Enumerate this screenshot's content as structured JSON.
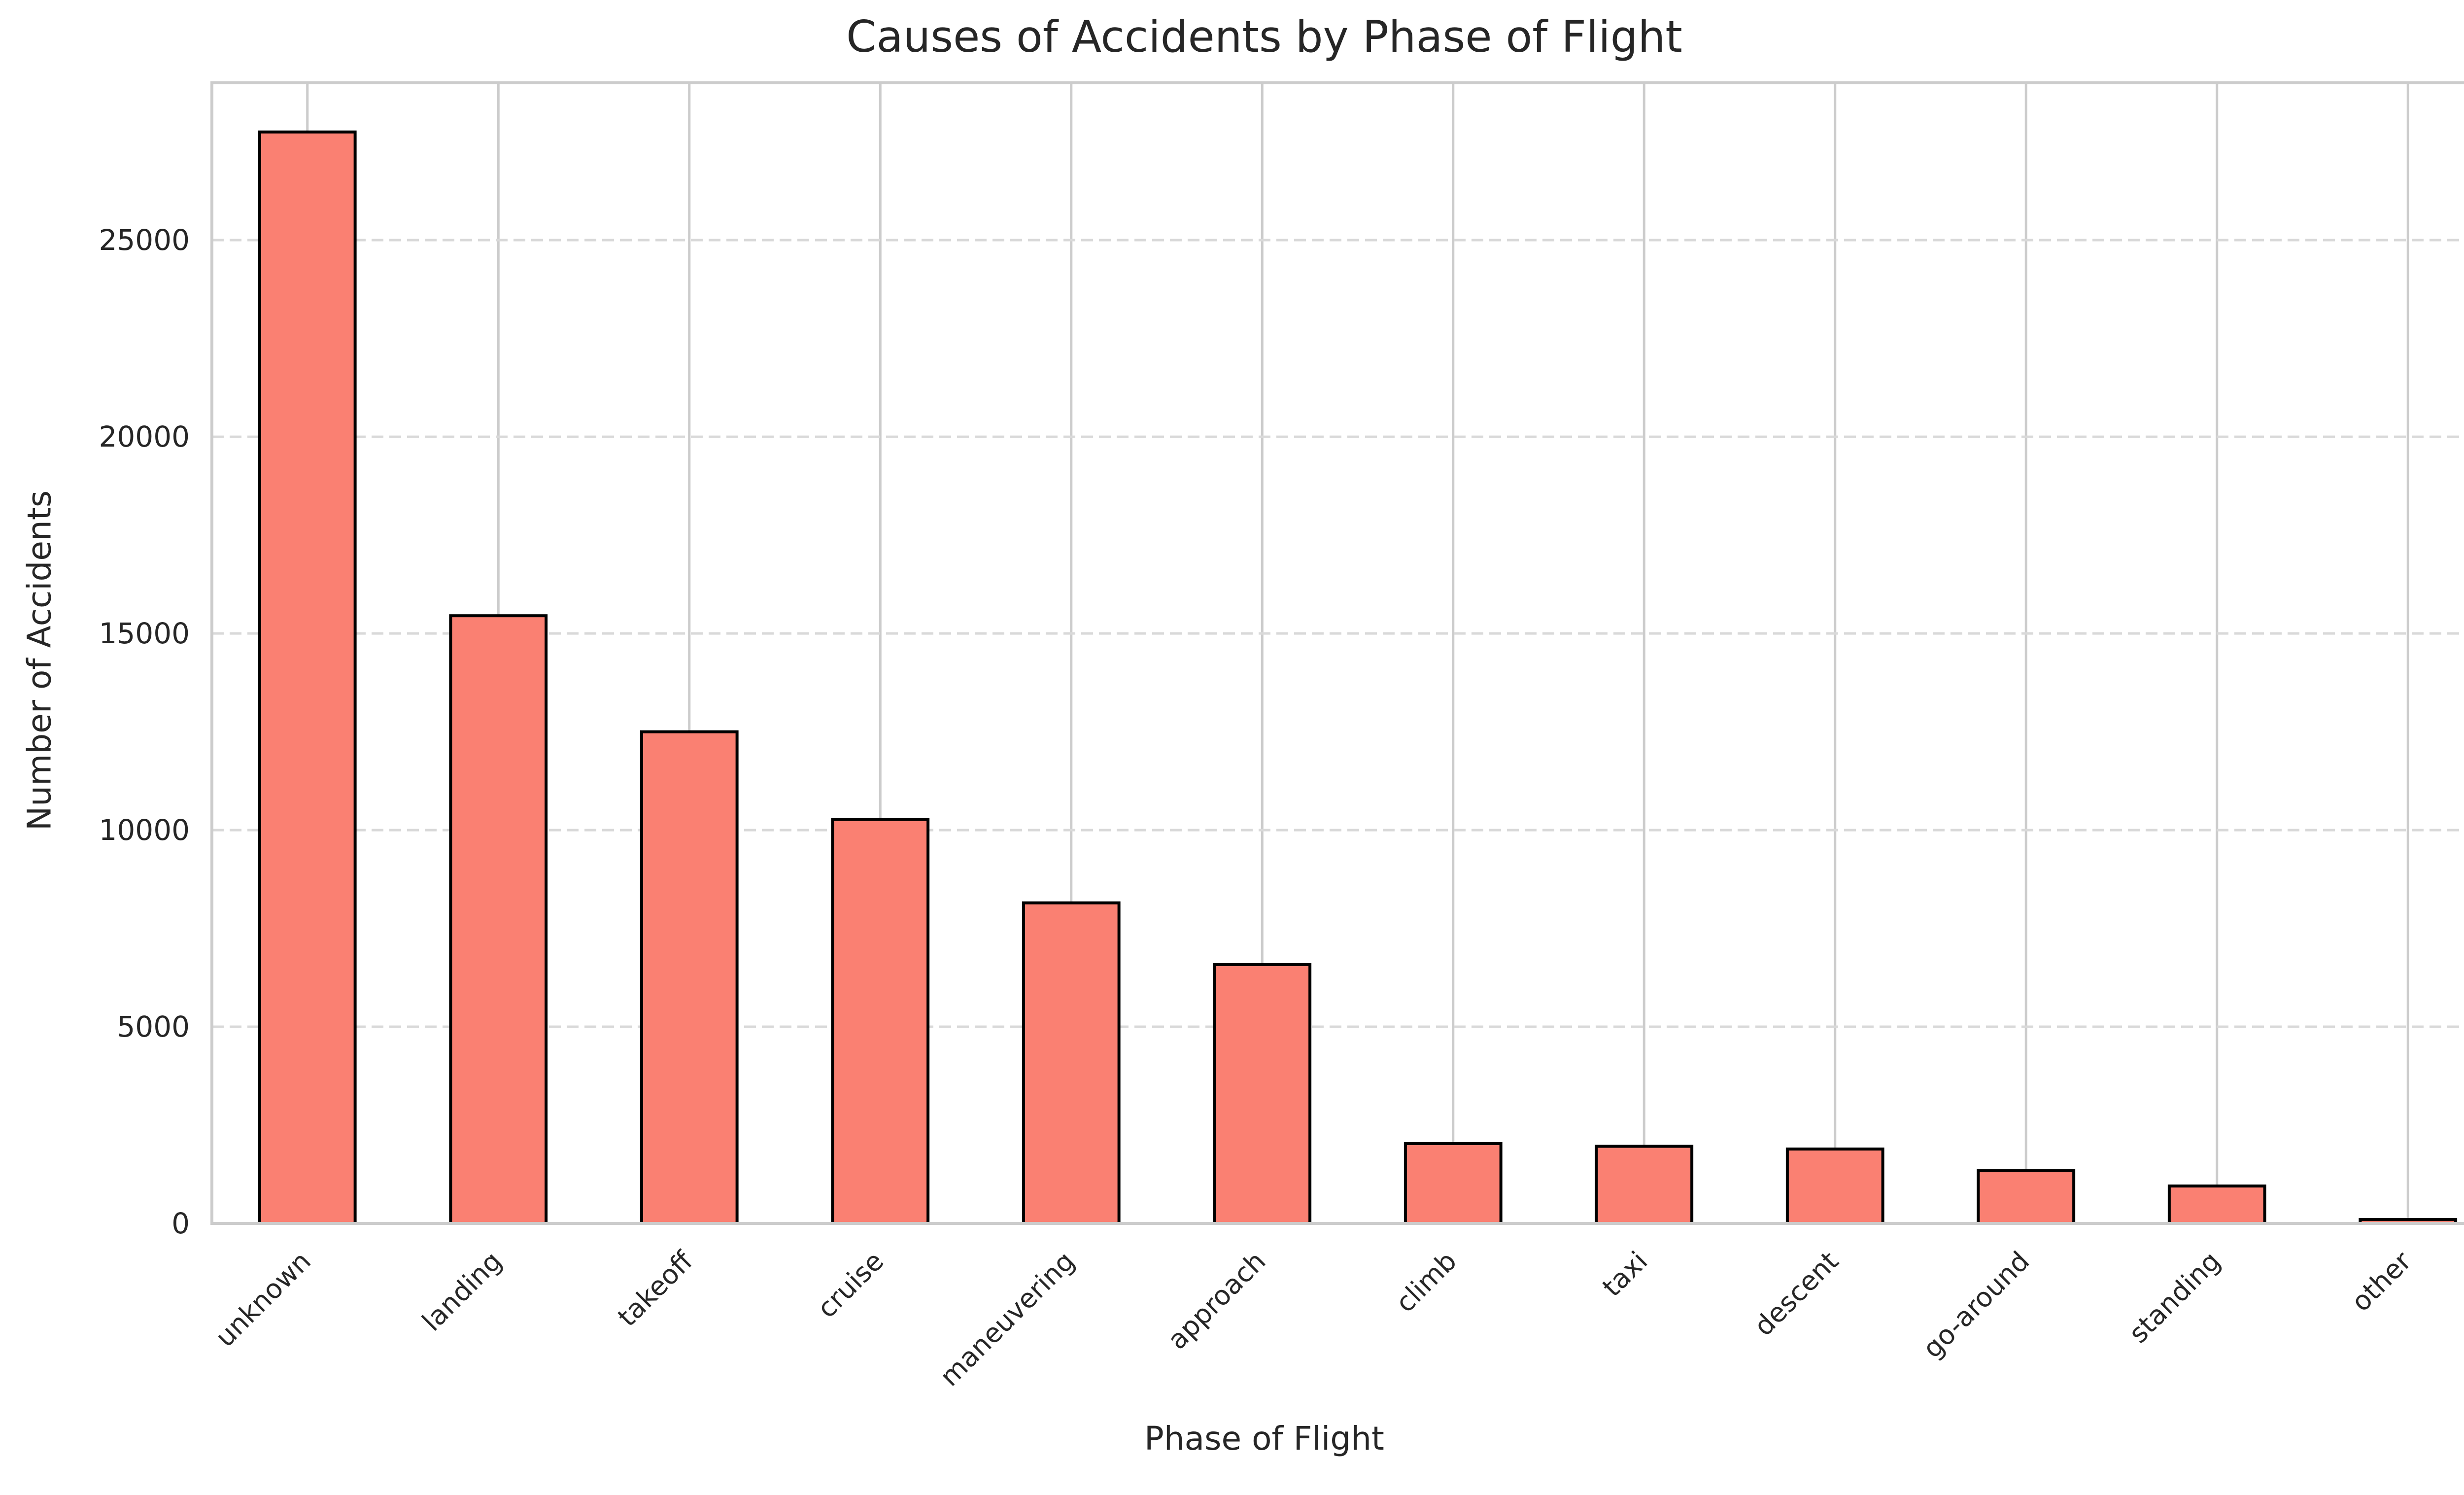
{
  "chart_data": {
    "type": "bar",
    "title": "Causes of Accidents by Phase of Flight",
    "xlabel": "Phase of Flight",
    "ylabel": "Number of Accidents",
    "categories": [
      "unknown",
      "landing",
      "takeoff",
      "cruise",
      "maneuvering",
      "approach",
      "climb",
      "taxi",
      "descent",
      "go-around",
      "standing",
      "other"
    ],
    "values": [
      27750,
      15450,
      12500,
      10270,
      8150,
      6580,
      2030,
      1960,
      1890,
      1340,
      950,
      100
    ],
    "ylim": [
      0,
      29000
    ],
    "yticks": [
      "0",
      "5000",
      "10000",
      "15000",
      "20000",
      "25000"
    ],
    "grid": "on",
    "colors": {
      "bar_fill": "#FA8072",
      "bar_edge": "#000000",
      "grid_line": "#d9d9d9",
      "axis_frame": "#cccccc",
      "text": "#262626"
    }
  }
}
